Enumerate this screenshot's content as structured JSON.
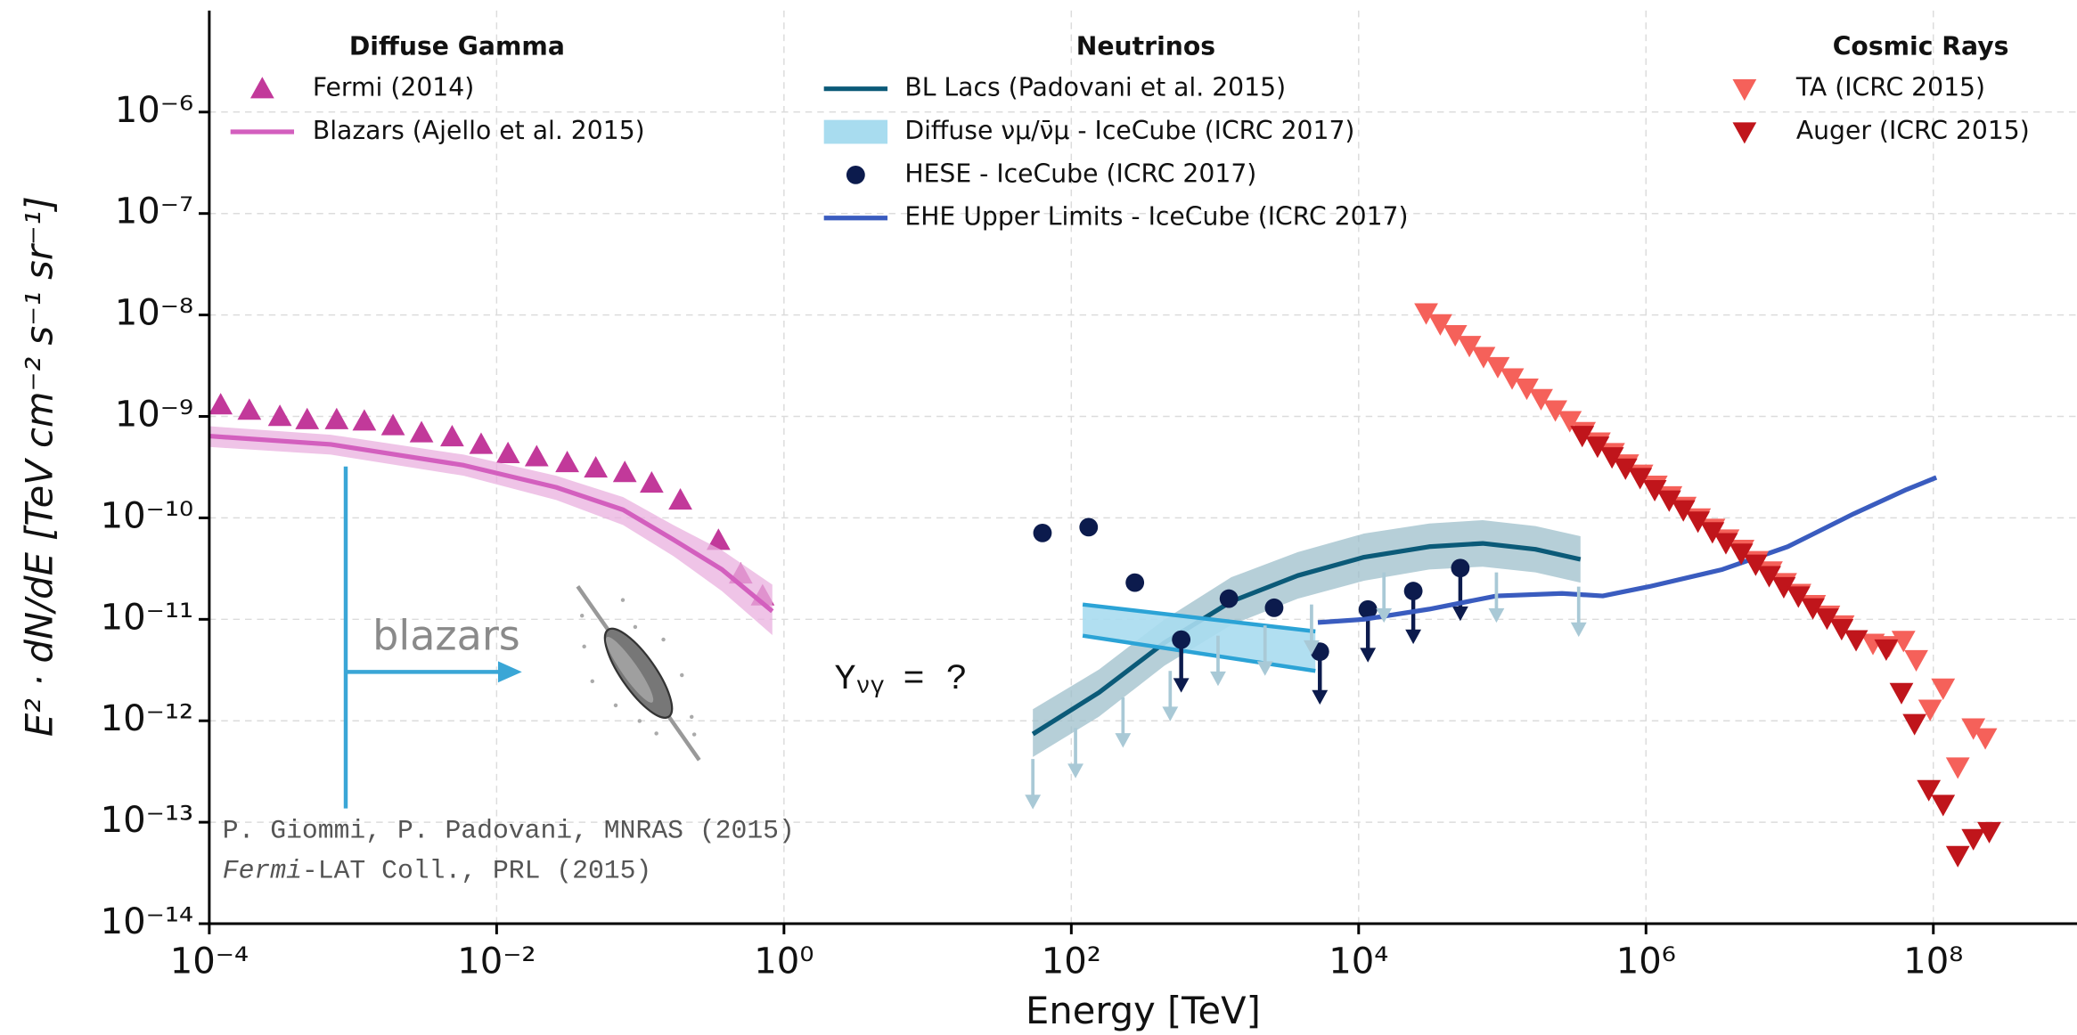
{
  "chart_data": {
    "type": "line",
    "xlabel": "Energy [TeV]",
    "ylabel": "E² · dN/dE [TeV cm⁻² s⁻¹ sr⁻¹]",
    "xscale": "log",
    "yscale": "log",
    "xlim": [
      0.0001,
      1000000000.0
    ],
    "ylim": [
      1e-14,
      1e-05
    ],
    "xticks": [
      {
        "value": 0.0001,
        "label": "10⁻⁴"
      },
      {
        "value": 0.01,
        "label": "10⁻²"
      },
      {
        "value": 1,
        "label": "10⁰"
      },
      {
        "value": 100,
        "label": "10²"
      },
      {
        "value": 10000.0,
        "label": "10⁴"
      },
      {
        "value": 1000000.0,
        "label": "10⁶"
      },
      {
        "value": 100000000.0,
        "label": "10⁸"
      }
    ],
    "yticks": [
      {
        "value": 1e-14,
        "label": "10⁻¹⁴"
      },
      {
        "value": 1e-13,
        "label": "10⁻¹³"
      },
      {
        "value": 1e-12,
        "label": "10⁻¹²"
      },
      {
        "value": 1e-11,
        "label": "10⁻¹¹"
      },
      {
        "value": 1e-10,
        "label": "10⁻¹⁰"
      },
      {
        "value": 1e-09,
        "label": "10⁻⁹"
      },
      {
        "value": 1e-08,
        "label": "10⁻⁸"
      },
      {
        "value": 1e-07,
        "label": "10⁻⁷"
      },
      {
        "value": 1e-06,
        "label": "10⁻⁶"
      }
    ],
    "grid": true,
    "annotations": {
      "blazars": "blazars",
      "symbol": "Y",
      "subscript": "νγ",
      "equation": "= ?",
      "citation_1": "P. Giommi, P. Padovani, MNRAS (2015)",
      "citation_2_italic": "Fermi",
      "citation_2": "-LAT Coll., PRL (2015)"
    },
    "groups": [
      {
        "title": "Diffuse Gamma",
        "series": [
          {
            "name": "Fermi (2014)",
            "kind": "triangle-up",
            "color": "#c2399a",
            "x": [
              0.00012,
              0.00019,
              0.00031,
              0.00048,
              0.00077,
              0.0012,
              0.0019,
              0.003,
              0.0049,
              0.0078,
              0.012,
              0.019,
              0.031,
              0.049,
              0.078,
              0.12,
              0.19,
              0.35,
              0.5,
              0.71
            ],
            "values": [
              1.3e-09,
              1.15e-09,
              1e-09,
              9.3e-10,
              9.3e-10,
              9e-10,
              8.1e-10,
              6.9e-10,
              6.3e-10,
              5.3e-10,
              4.3e-10,
              4e-10,
              3.5e-10,
              3.1e-10,
              2.8e-10,
              2.2e-10,
              1.5e-10,
              6e-11,
              2.8e-11,
              1.7e-11
            ]
          },
          {
            "name": "Blazars (Ajello et al. 2015)",
            "kind": "line",
            "color": "#d35fbe",
            "band_color": "#eab0df",
            "x": [
              0.0001,
              0.0007,
              0.0059,
              0.026,
              0.076,
              0.17,
              0.37,
              0.83
            ],
            "values": [
              6.4e-10,
              5.3e-10,
              3.3e-10,
              2e-10,
              1.2e-10,
              6.1e-11,
              3.1e-11,
              1.2e-11
            ],
            "upper": [
              8e-10,
              6.6e-10,
              4.2e-10,
              2.6e-10,
              1.6e-10,
              8.5e-11,
              4.8e-11,
              2.2e-11
            ],
            "lower": [
              5e-10,
              4.2e-10,
              2.6e-10,
              1.5e-10,
              8.5e-11,
              4.2e-11,
              1.9e-11,
              7e-12
            ]
          }
        ]
      },
      {
        "title": "Neutrinos",
        "series": [
          {
            "name": "BL Lacs (Padovani et al. 2015)",
            "kind": "line",
            "color": "#0b5a78",
            "band_color": "#9dbfcb",
            "x": [
              54,
              156,
              446,
              1300,
              3770,
              10900.0,
              31000.0,
              73000.0,
              170000.0,
              350000.0
            ],
            "values": [
              7.4e-13,
              1.9e-12,
              5.9e-12,
              1.5e-11,
              2.7e-11,
              4.1e-11,
              5.2e-11,
              5.6e-11,
              4.9e-11,
              3.9e-11
            ],
            "upper": [
              1.3e-12,
              3.2e-12,
              1e-11,
              2.6e-11,
              4.6e-11,
              7e-11,
              8.8e-11,
              9.5e-11,
              8.3e-11,
              6.6e-11
            ],
            "lower": [
              4.4e-13,
              1.1e-12,
              3.5e-12,
              8.8e-12,
              1.6e-11,
              2.4e-11,
              3.1e-11,
              3.3e-11,
              2.9e-11,
              2.3e-11
            ]
          },
          {
            "name": "Diffuse νμ/ν̄μ - IceCube (ICRC 2017)",
            "kind": "band",
            "color": "#2ba3d6",
            "band_color": "#a8dcef",
            "x": [
              120,
              5000
            ],
            "upper": [
              1.4e-11,
              7.6e-12
            ],
            "lower": [
              6.9e-12,
              3.1e-12
            ]
          },
          {
            "name": "HESE - IceCube (ICRC 2017)",
            "kind": "dot",
            "color": "#0c1b4d",
            "x": [
              63,
              132,
              277,
              582,
              1250,
              2580,
              5370,
              11600.0,
              24000.0,
              51000.0
            ],
            "values": [
              7.1e-11,
              8.1e-11,
              2.3e-11,
              6.3e-12,
              1.6e-11,
              1.3e-11,
              4.8e-12,
              1.25e-11,
              1.9e-11,
              3.2e-11
            ],
            "upper_limit": [
              false,
              false,
              false,
              true,
              false,
              false,
              true,
              true,
              true,
              true
            ]
          },
          {
            "name": "EHE Upper Limits - IceCube (ICRC 2017)",
            "kind": "line",
            "color": "#3a5cbf",
            "x": [
              5200,
              10900.0,
              31000.0,
              91000.0,
              260000.0,
              500000.0,
              1050000.0,
              3400000.0,
              9700000.0,
              28000000.0,
              65000000.0,
              105000000.0
            ],
            "values": [
              9.3e-12,
              1e-11,
              1.26e-11,
              1.7e-11,
              1.8e-11,
              1.7e-11,
              2.1e-11,
              3.1e-11,
              5.2e-11,
              1.1e-10,
              1.9e-10,
              2.5e-10
            ]
          },
          {
            "kind": "arrow",
            "color": "#a9c9d6",
            "x": [
              54,
              107,
              229,
              488,
              1050,
              2230,
              4700,
              15000.0,
              91000.0,
              340000.0
            ],
            "values": [
              4.2e-13,
              8.5e-13,
              1.7e-12,
              3.1e-12,
              6.9e-12,
              8.7e-12,
              1.4e-11,
              2.9e-11,
              2.9e-11,
              2.1e-11
            ]
          }
        ]
      },
      {
        "title": "Cosmic Rays",
        "series": [
          {
            "name": "TA (ICRC 2015)",
            "kind": "triangle-down",
            "color": "#f5615a",
            "x": [
              29500.0,
              37000.0,
              47000.0,
              59000.0,
              74000.0,
              93000.0,
              117000.0,
              148000.0,
              186000.0,
              234000.0,
              295000.0,
              370000.0,
              470000.0,
              590000.0,
              740000.0,
              930000.0,
              1170000.0,
              1480000.0,
              1860000.0,
              2340000.0,
              2950000.0,
              3700000.0,
              4700000.0,
              5900000.0,
              7400000.0,
              9300000.0,
              11700000.0,
              14800000.0,
              18600000.0,
              23400000.0,
              38000000.0,
              49000000.0,
              62000000.0,
              76000000.0,
              95000000.0,
              117000000.0,
              148000000.0,
              190000000.0,
              230000000.0
            ],
            "values": [
              1.05e-08,
              8.2e-09,
              6.4e-09,
              5e-09,
              3.9e-09,
              3.1e-09,
              2.4e-09,
              1.9e-09,
              1.5e-09,
              1.16e-09,
              9.1e-10,
              7.1e-10,
              5.6e-10,
              4.4e-10,
              3.4e-10,
              2.7e-10,
              2.1e-10,
              1.65e-10,
              1.3e-10,
              1e-10,
              7.9e-11,
              6.2e-11,
              4.9e-11,
              3.8e-11,
              3e-11,
              2.3e-11,
              1.8e-11,
              1.4e-11,
              1.1e-11,
              8.8e-12,
              5.8e-12,
              5.5e-12,
              6.2e-12,
              4e-12,
              1.3e-12,
              2.1e-12,
              3.5e-13,
              8.5e-13,
              6.8e-13
            ]
          },
          {
            "name": "Auger (ICRC 2015)",
            "kind": "triangle-down",
            "color": "#c0151b",
            "x": [
              360000.0,
              460000.0,
              580000.0,
              720000.0,
              910000.0,
              1150000.0,
              1450000.0,
              1820000.0,
              2300000.0,
              2900000.0,
              3600000.0,
              4600000.0,
              5800000.0,
              7200000.0,
              9100000.0,
              11500000.0,
              14500000.0,
              18200000.0,
              23000000.0,
              29000000.0,
              47000000.0,
              60000000.0,
              74000000.0,
              93000000.0,
              117000000.0,
              148000000.0,
              190000000.0,
              245000000.0
            ],
            "values": [
              6.5e-10,
              5.1e-10,
              4e-10,
              3.1e-10,
              2.5e-10,
              1.9e-10,
              1.5e-10,
              1.2e-10,
              9.3e-11,
              7.3e-11,
              5.7e-11,
              4.5e-11,
              3.5e-11,
              2.7e-11,
              2.1e-11,
              1.7e-11,
              1.3e-11,
              1.03e-11,
              8.1e-12,
              6.3e-12,
              5.1e-12,
              1.9e-12,
              9.4e-13,
              2.1e-13,
              1.5e-13,
              4.7e-14,
              6.9e-14,
              8.1e-14
            ]
          }
        ]
      }
    ]
  }
}
